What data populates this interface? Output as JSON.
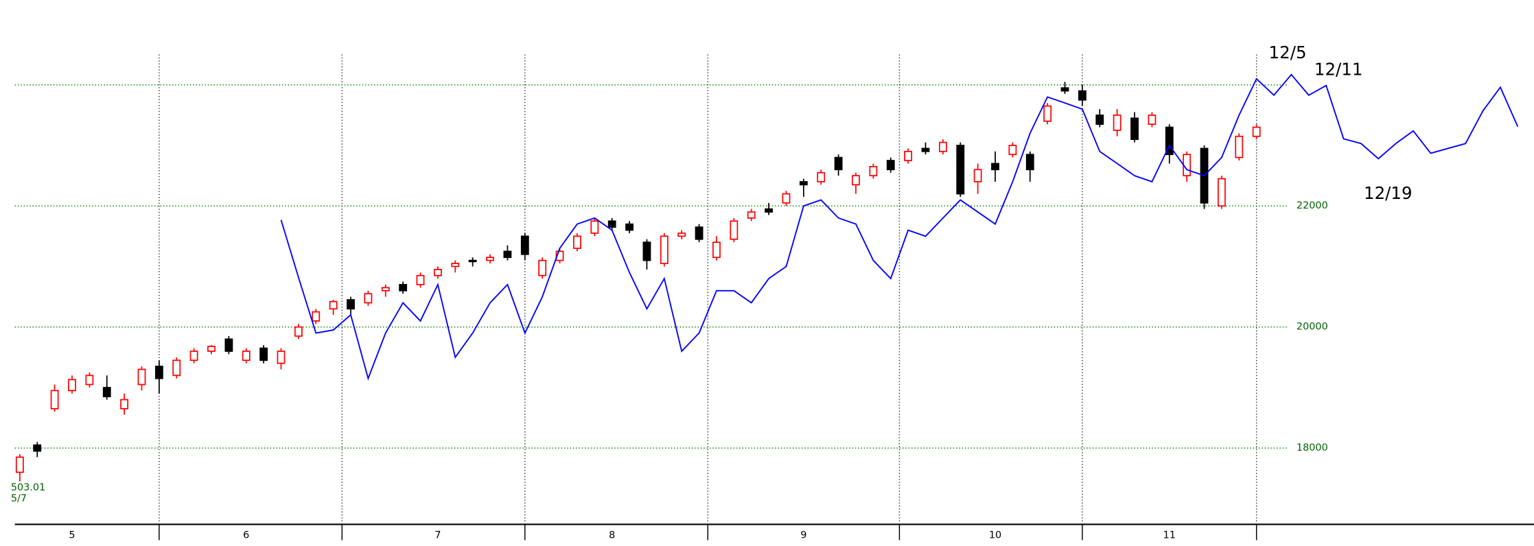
{
  "chart_data": {
    "type": "candlestick",
    "categories": [
      null,
      null,
      null,
      "5",
      null,
      null,
      null,
      null,
      null,
      null,
      null,
      null,
      null,
      "6",
      null,
      null,
      null,
      null,
      null,
      null,
      null,
      null,
      null,
      null,
      "7",
      null,
      null,
      null,
      null,
      null,
      null,
      null,
      null,
      null,
      "8",
      null,
      null,
      null,
      null,
      null,
      null,
      null,
      null,
      null,
      null,
      "9",
      null,
      null,
      null,
      null,
      null,
      null,
      null,
      null,
      null,
      null,
      "10",
      null,
      null,
      null,
      null,
      null,
      null,
      null,
      null,
      null,
      "11",
      null,
      null,
      null,
      null,
      null,
      null,
      null,
      null,
      null,
      null,
      null,
      null,
      null,
      null,
      null,
      null,
      null,
      null,
      null,
      null
    ],
    "ohlc": [
      [
        17600,
        17900,
        17450,
        17850
      ],
      [
        18050,
        18100,
        17850,
        17950
      ],
      [
        18650,
        19050,
        18600,
        18950
      ],
      [
        18950,
        19200,
        18900,
        19130
      ],
      [
        19050,
        19250,
        19000,
        19200
      ],
      [
        19000,
        19200,
        18800,
        18850
      ],
      [
        18650,
        18900,
        18550,
        18800
      ],
      [
        19050,
        19350,
        18950,
        19300
      ],
      [
        19350,
        19450,
        18900,
        19150
      ],
      [
        19200,
        19500,
        19150,
        19450
      ],
      [
        19450,
        19650,
        19400,
        19600
      ],
      [
        19600,
        19700,
        19550,
        19680
      ],
      [
        19800,
        19850,
        19550,
        19600
      ],
      [
        19450,
        19650,
        19400,
        19600
      ],
      [
        19650,
        19700,
        19400,
        19450
      ],
      [
        19400,
        19650,
        19300,
        19600
      ],
      [
        19850,
        20050,
        19800,
        20000
      ],
      [
        20100,
        20300,
        20050,
        20250
      ],
      [
        20300,
        20450,
        20200,
        20420
      ],
      [
        20450,
        20500,
        20200,
        20300
      ],
      [
        20400,
        20600,
        20350,
        20550
      ],
      [
        20600,
        20700,
        20500,
        20650
      ],
      [
        20700,
        20750,
        20550,
        20600
      ],
      [
        20700,
        20900,
        20650,
        20850
      ],
      [
        20850,
        21000,
        20800,
        20950
      ],
      [
        21000,
        21100,
        20900,
        21050
      ],
      [
        21100,
        21150,
        21000,
        21080
      ],
      [
        21100,
        21200,
        21050,
        21150
      ],
      [
        21250,
        21350,
        21100,
        21150
      ],
      [
        21500,
        21550,
        21100,
        21200
      ],
      [
        20850,
        21150,
        20800,
        21100
      ],
      [
        21100,
        21300,
        21050,
        21250
      ],
      [
        21300,
        21550,
        21250,
        21500
      ],
      [
        21550,
        21800,
        21500,
        21750
      ],
      [
        21750,
        21800,
        21600,
        21650
      ],
      [
        21700,
        21750,
        21550,
        21600
      ],
      [
        21400,
        21450,
        20950,
        21100
      ],
      [
        21050,
        21550,
        21000,
        21500
      ],
      [
        21500,
        21600,
        21450,
        21550
      ],
      [
        21650,
        21700,
        21400,
        21450
      ],
      [
        21150,
        21500,
        21100,
        21400
      ],
      [
        21450,
        21800,
        21400,
        21750
      ],
      [
        21800,
        21950,
        21750,
        21900
      ],
      [
        21950,
        22050,
        21850,
        21900
      ],
      [
        22050,
        22250,
        22000,
        22200
      ],
      [
        22400,
        22450,
        22150,
        22350
      ],
      [
        22400,
        22600,
        22350,
        22550
      ],
      [
        22800,
        22850,
        22500,
        22600
      ],
      [
        22350,
        22550,
        22200,
        22500
      ],
      [
        22500,
        22700,
        22450,
        22650
      ],
      [
        22750,
        22800,
        22550,
        22600
      ],
      [
        22750,
        22950,
        22700,
        22900
      ],
      [
        22950,
        23050,
        22850,
        22900
      ],
      [
        22900,
        23100,
        22850,
        23050
      ],
      [
        23000,
        23050,
        22150,
        22200
      ],
      [
        22400,
        22700,
        22200,
        22600
      ],
      [
        22700,
        22900,
        22400,
        22600
      ],
      [
        22850,
        23050,
        22800,
        23000
      ],
      [
        22850,
        22900,
        22400,
        22600
      ],
      [
        23400,
        23700,
        23350,
        23650
      ],
      [
        23950,
        24050,
        23850,
        23900
      ],
      [
        23900,
        24000,
        23650,
        23750
      ],
      [
        23500,
        23600,
        23300,
        23350
      ],
      [
        23250,
        23600,
        23150,
        23500
      ],
      [
        23450,
        23550,
        23050,
        23100
      ],
      [
        23350,
        23550,
        23300,
        23500
      ],
      [
        23300,
        23350,
        22700,
        22850
      ],
      [
        22500,
        22900,
        22400,
        22850
      ],
      [
        22950,
        23000,
        21950,
        22050
      ],
      [
        22000,
        22500,
        21950,
        22450
      ],
      [
        22800,
        23200,
        22750,
        23150
      ],
      [
        23150,
        23350,
        23100,
        23300
      ],
      null,
      null,
      null,
      null,
      null,
      null,
      null,
      null,
      null,
      null,
      null,
      null,
      null,
      null,
      null
    ],
    "line_values": [
      null,
      null,
      null,
      null,
      null,
      null,
      null,
      null,
      null,
      null,
      null,
      null,
      null,
      null,
      null,
      21770,
      20820,
      19900,
      19950,
      20200,
      19150,
      19900,
      20400,
      20100,
      20700,
      19500,
      19900,
      20400,
      20700,
      19900,
      20500,
      21300,
      21700,
      21800,
      21600,
      20900,
      20300,
      20800,
      19600,
      19900,
      20600,
      20600,
      20400,
      20800,
      21000,
      22000,
      22100,
      21800,
      21700,
      21100,
      20800,
      21600,
      21500,
      21800,
      22100,
      21900,
      21700,
      22400,
      23200,
      23800,
      23700,
      23600,
      22900,
      22700,
      22500,
      22400,
      23000,
      22600,
      22500,
      22800,
      23500,
      24100,
      23830,
      24170,
      23830,
      23990,
      23110,
      23030,
      22780,
      23030,
      23240,
      22870,
      22950,
      23030,
      23570,
      23960,
      23310
    ],
    "up_color": "#ff0000",
    "down_color": "#000000",
    "line_color": "#0000ff",
    "grid_color": "#008000",
    "ylim": [
      16740,
      25400
    ],
    "yticks": [
      18000,
      20000,
      22000
    ],
    "gridlines": [
      18000,
      20000,
      22000,
      24000
    ],
    "annotations": [
      "12/5",
      "12/11",
      "12/19"
    ],
    "start_code": "503.01",
    "start_date": "5/7"
  }
}
